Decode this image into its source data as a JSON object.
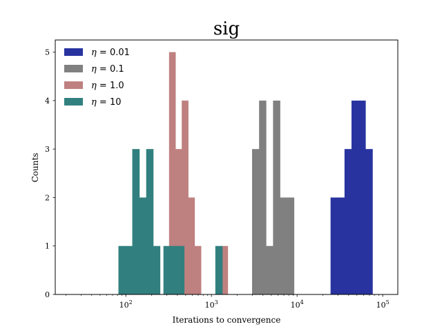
{
  "chart_data": {
    "type": "bar",
    "title": "sig",
    "xlabel": "Iterations to convergence",
    "ylabel": "Counts",
    "xscale": "log",
    "xlim": [
      15,
      150000
    ],
    "ylim": [
      0,
      5.25
    ],
    "x_ticks": [
      {
        "value": 100,
        "base": "10",
        "exp": "2"
      },
      {
        "value": 1000,
        "base": "10",
        "exp": "3"
      },
      {
        "value": 10000,
        "base": "10",
        "exp": "4"
      },
      {
        "value": 100000,
        "base": "10",
        "exp": "5"
      }
    ],
    "y_ticks": [
      "0",
      "1",
      "2",
      "3",
      "4",
      "5"
    ],
    "legend_position": "top-left",
    "series": [
      {
        "name": "η = 0.01",
        "legend": {
          "greek": "η",
          "value": "0.01"
        },
        "color": "#2833a0",
        "bins": [
          {
            "x0": 24600,
            "x1": 29700,
            "count": 2
          },
          {
            "x0": 29700,
            "x1": 35800,
            "count": 2
          },
          {
            "x0": 35800,
            "x1": 43200,
            "count": 3
          },
          {
            "x0": 43200,
            "x1": 52100,
            "count": 4
          },
          {
            "x0": 52100,
            "x1": 62900,
            "count": 4
          },
          {
            "x0": 62900,
            "x1": 75900,
            "count": 3
          }
        ]
      },
      {
        "name": "η = 0.1",
        "legend": {
          "greek": "η",
          "value": "0.1"
        },
        "color": "#808080",
        "bins": [
          {
            "x0": 2980,
            "x1": 3600,
            "count": 3
          },
          {
            "x0": 3600,
            "x1": 4340,
            "count": 4
          },
          {
            "x0": 4340,
            "x1": 5240,
            "count": 1
          },
          {
            "x0": 5240,
            "x1": 6320,
            "count": 4
          },
          {
            "x0": 6320,
            "x1": 7630,
            "count": 2
          },
          {
            "x0": 7630,
            "x1": 9200,
            "count": 2
          }
        ]
      },
      {
        "name": "η = 1.0",
        "legend": {
          "greek": "η",
          "value": "1.0"
        },
        "color": "#bf8080",
        "bins": [
          {
            "x0": 320,
            "x1": 380,
            "count": 5
          },
          {
            "x0": 380,
            "x1": 450,
            "count": 3
          },
          {
            "x0": 450,
            "x1": 535,
            "count": 4
          },
          {
            "x0": 535,
            "x1": 635,
            "count": 2
          },
          {
            "x0": 635,
            "x1": 755,
            "count": 1
          },
          {
            "x0": 1300,
            "x1": 1550,
            "count": 1
          }
        ]
      },
      {
        "name": "η = 10",
        "legend": {
          "greek": "η",
          "value": "10"
        },
        "color": "#31807f",
        "bins": [
          {
            "x0": 82,
            "x1": 99,
            "count": 1
          },
          {
            "x0": 99,
            "x1": 119,
            "count": 1
          },
          {
            "x0": 119,
            "x1": 144,
            "count": 3
          },
          {
            "x0": 144,
            "x1": 173,
            "count": 2
          },
          {
            "x0": 173,
            "x1": 209,
            "count": 3
          },
          {
            "x0": 209,
            "x1": 251,
            "count": 1
          },
          {
            "x0": 275,
            "x1": 331,
            "count": 1
          },
          {
            "x0": 331,
            "x1": 399,
            "count": 1
          },
          {
            "x0": 399,
            "x1": 480,
            "count": 1
          },
          {
            "x0": 1110,
            "x1": 1340,
            "count": 1
          }
        ]
      }
    ]
  }
}
